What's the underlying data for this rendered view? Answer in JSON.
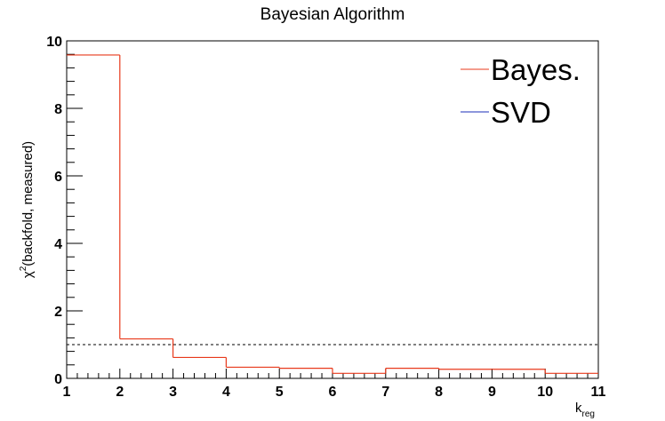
{
  "chart_data": {
    "type": "line",
    "title": "Bayesian Algorithm",
    "xlabel_main": "k",
    "xlabel_sub": "reg",
    "ylabel_pre": "χ",
    "ylabel_sup": "2",
    "ylabel_post": "(backfold, measured)",
    "xlim": [
      1,
      11
    ],
    "ylim": [
      0,
      10
    ],
    "x_ticks": [
      "1",
      "2",
      "3",
      "4",
      "5",
      "6",
      "7",
      "8",
      "9",
      "10",
      "11"
    ],
    "y_ticks": [
      "0",
      "2",
      "4",
      "6",
      "8",
      "10"
    ],
    "series": [
      {
        "name": "Bayes.",
        "color": "#e8391b",
        "style": "step-histogram",
        "bin_edges": [
          1,
          2,
          3,
          4,
          5,
          6,
          7,
          8,
          9,
          10,
          11
        ],
        "values": [
          9.58,
          1.17,
          0.62,
          0.33,
          0.3,
          0.15,
          0.3,
          0.27,
          0.27,
          0.15
        ]
      },
      {
        "name": "SVD",
        "color": "#1b2fb8",
        "style": "step-histogram",
        "bin_edges": [],
        "values": []
      }
    ],
    "reference_line": {
      "y": 1.0,
      "style": "dashed",
      "color": "#000000"
    },
    "legend_placement": "top-right",
    "grid": false
  }
}
